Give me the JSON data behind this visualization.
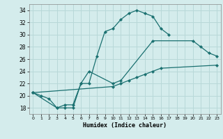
{
  "xlabel": "Humidex (Indice chaleur)",
  "xlim": [
    -0.5,
    23.5
  ],
  "ylim": [
    17.0,
    35.0
  ],
  "yticks": [
    18,
    20,
    22,
    24,
    26,
    28,
    30,
    32,
    34
  ],
  "xticks": [
    0,
    1,
    2,
    3,
    4,
    5,
    6,
    7,
    8,
    9,
    10,
    11,
    12,
    13,
    14,
    15,
    16,
    17,
    18,
    19,
    20,
    21,
    22,
    23
  ],
  "bg_color": "#d4ecec",
  "line_color": "#1a7070",
  "grid_color": "#b8d8d8",
  "series": [
    {
      "points": [
        [
          0,
          20.5
        ],
        [
          1,
          20.0
        ],
        [
          2,
          19.5
        ],
        [
          3,
          18.0
        ],
        [
          4,
          18.0
        ],
        [
          5,
          18.0
        ],
        [
          6,
          22.0
        ],
        [
          7,
          22.0
        ],
        [
          8,
          26.5
        ],
        [
          9,
          30.5
        ],
        [
          10,
          31.0
        ],
        [
          11,
          32.5
        ],
        [
          12,
          33.5
        ],
        [
          13,
          34.0
        ],
        [
          14,
          33.5
        ],
        [
          15,
          33.0
        ],
        [
          16,
          31.0
        ],
        [
          17,
          30.0
        ]
      ]
    },
    {
      "points": [
        [
          0,
          20.5
        ],
        [
          3,
          18.0
        ],
        [
          4,
          18.5
        ],
        [
          5,
          18.5
        ],
        [
          6,
          22.0
        ],
        [
          7,
          24.0
        ],
        [
          10,
          22.0
        ],
        [
          11,
          22.5
        ],
        [
          15,
          29.0
        ],
        [
          20,
          29.0
        ],
        [
          21,
          28.0
        ],
        [
          22,
          27.0
        ],
        [
          23,
          26.5
        ]
      ]
    },
    {
      "points": [
        [
          0,
          20.5
        ],
        [
          10,
          21.5
        ],
        [
          11,
          22.0
        ],
        [
          12,
          22.5
        ],
        [
          13,
          23.0
        ],
        [
          14,
          23.5
        ],
        [
          15,
          24.0
        ],
        [
          16,
          24.5
        ],
        [
          23,
          25.0
        ]
      ]
    }
  ]
}
